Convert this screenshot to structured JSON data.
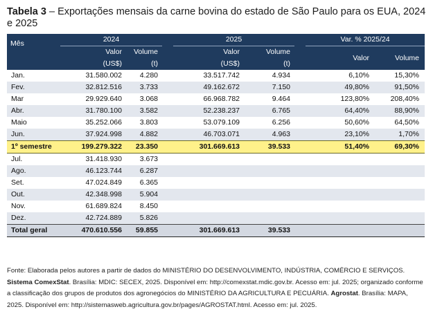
{
  "title": {
    "label": "Tabela 3",
    "text": " – Exportações mensais da carne bovina do estado de São Paulo para os EUA, 2024 e 2025"
  },
  "header": {
    "mes": "Mês",
    "group_2024": "2024",
    "group_2025": "2025",
    "group_var": "Var. % 2025/24",
    "valor_line1": "Valor",
    "valor_line2": "(US$)",
    "volume_line1": "Volume",
    "volume_line2": "(t)",
    "var_valor": "Valor",
    "var_volume": "Volume"
  },
  "rows": [
    {
      "mes": "Jan.",
      "v24": "31.580.002",
      "t24": "4.280",
      "v25": "33.517.742",
      "t25": "4.934",
      "pv": "6,10%",
      "pt": "15,30%"
    },
    {
      "mes": "Fev.",
      "v24": "32.812.516",
      "t24": "3.733",
      "v25": "49.162.672",
      "t25": "7.150",
      "pv": "49,80%",
      "pt": "91,50%"
    },
    {
      "mes": "Mar",
      "v24": "29.929.640",
      "t24": "3.068",
      "v25": "66.968.782",
      "t25": "9.464",
      "pv": "123,80%",
      "pt": "208,40%"
    },
    {
      "mes": "Abr.",
      "v24": "31.780.100",
      "t24": "3.582",
      "v25": "52.238.237",
      "t25": "6.765",
      "pv": "64,40%",
      "pt": "88,90%"
    },
    {
      "mes": "Maio",
      "v24": "35.252.066",
      "t24": "3.803",
      "v25": "53.079.109",
      "t25": "6.256",
      "pv": "50,60%",
      "pt": "64,50%"
    },
    {
      "mes": "Jun.",
      "v24": "37.924.998",
      "t24": "4.882",
      "v25": "46.703.071",
      "t25": "4.963",
      "pv": "23,10%",
      "pt": "1,70%"
    }
  ],
  "semester": {
    "mes": "1º semestre",
    "v24": "199.279.322",
    "t24": "23.350",
    "v25": "301.669.613",
    "t25": "39.533",
    "pv": "51,40%",
    "pt": "69,30%"
  },
  "rows2": [
    {
      "mes": "Jul.",
      "v24": "31.418.930",
      "t24": "3.673"
    },
    {
      "mes": "Ago.",
      "v24": "46.123.744",
      "t24": "6.287"
    },
    {
      "mes": "Set.",
      "v24": "47.024.849",
      "t24": "6.365"
    },
    {
      "mes": "Out.",
      "v24": "42.348.998",
      "t24": "5.904"
    },
    {
      "mes": "Nov.",
      "v24": "61.689.824",
      "t24": "8.450"
    },
    {
      "mes": "Dez.",
      "v24": "42.724.889",
      "t24": "5.826"
    }
  ],
  "total": {
    "mes": "Total geral",
    "v24": "470.610.556",
    "t24": "59.855",
    "v25": "301.669.613",
    "t25": "39.533"
  },
  "source": {
    "part1": "Fonte: Elaborada pelos autores a partir de dados do MINISTÉRIO DO DESENVOLVIMENTO, INDÚSTRIA, COMÉRCIO E SERVIÇOS.",
    "bold1": "Sistema ComexStat",
    "part2": ". Brasília: MDIC: SECEX, 2025. Disponível em: http://comexstat.mdic.gov.br. Acesso em: jul. 2025; organizado conforme a classificação dos grupos de produtos dos agronegócios do MINISTÉRIO DA AGRICULTURA E PECUÁRIA. ",
    "bold2": "Agrostat",
    "part3": ". Brasília: MAPA, 2025. Disponível em: http://sistemasweb.agricultura.gov.br/pages/AGROSTAT.html. Acesso em: jul. 2025."
  },
  "colors": {
    "header_bg": "#1f3b5e",
    "alt_row": "#e3e7ee",
    "semester_bg": "#fff18a",
    "total_bg": "#d3d8e1"
  }
}
